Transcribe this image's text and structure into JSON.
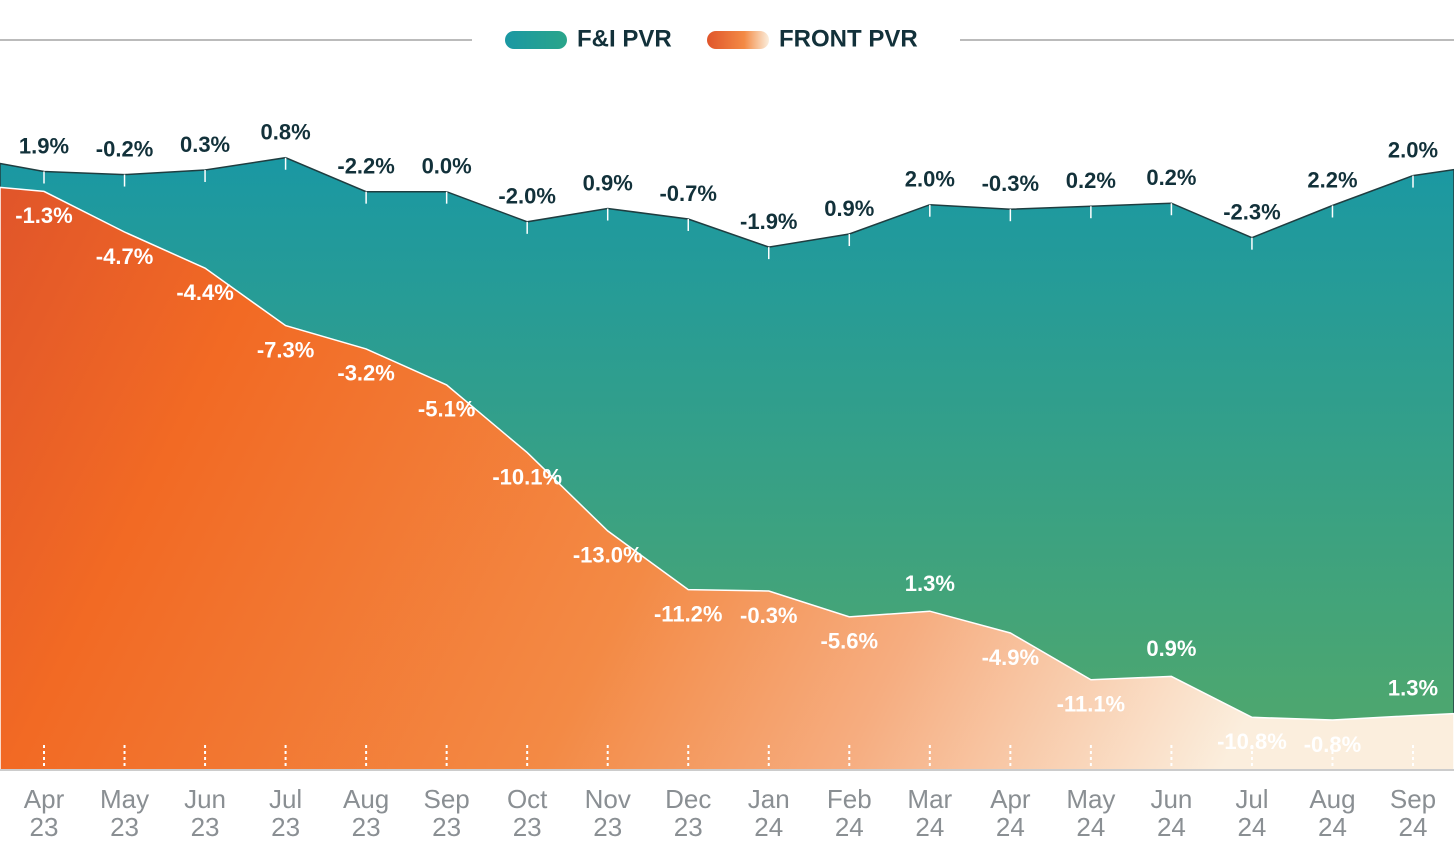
{
  "chart_data": {
    "type": "area",
    "categories": [
      [
        "Apr",
        "23"
      ],
      [
        "May",
        "23"
      ],
      [
        "Jun",
        "23"
      ],
      [
        "Jul",
        "23"
      ],
      [
        "Aug",
        "23"
      ],
      [
        "Sep",
        "23"
      ],
      [
        "Oct",
        "23"
      ],
      [
        "Nov",
        "23"
      ],
      [
        "Dec",
        "23"
      ],
      [
        "Jan",
        "24"
      ],
      [
        "Feb",
        "24"
      ],
      [
        "Mar",
        "24"
      ],
      [
        "Apr",
        "24"
      ],
      [
        "May",
        "24"
      ],
      [
        "Jun",
        "24"
      ],
      [
        "Jul",
        "24"
      ],
      [
        "Aug",
        "24"
      ],
      [
        "Sep",
        "24"
      ]
    ],
    "series": [
      {
        "name": "F&I PVR",
        "color": "#1a98a3",
        "values": [
          1.9,
          -0.2,
          0.3,
          0.8,
          -2.2,
          0.0,
          -2.0,
          0.9,
          -0.7,
          -1.9,
          0.9,
          2.0,
          -0.3,
          0.2,
          0.2,
          -2.3,
          2.2,
          2.0
        ],
        "value_labels": [
          "1.9%",
          "-0.2%",
          "0.3%",
          "0.8%",
          "-2.2%",
          "0.0%",
          "-2.0%",
          "0.9%",
          "-0.7%",
          "-1.9%",
          "0.9%",
          "2.0%",
          "-0.3%",
          "0.2%",
          "0.2%",
          "-2.3%",
          "2.2%",
          "2.0%"
        ]
      },
      {
        "name": "FRONT PVR",
        "color": "#f26a24",
        "values": [
          -1.3,
          -4.7,
          -4.4,
          -7.3,
          -3.2,
          -5.1,
          -10.1,
          -13.0,
          -11.2,
          -0.3,
          -5.6,
          1.3,
          -4.9,
          -11.1,
          0.9,
          -10.8,
          -0.8,
          1.3
        ],
        "value_labels": [
          "-1.3%",
          "-4.7%",
          "-4.4%",
          "-7.3%",
          "-3.2%",
          "-5.1%",
          "-10.1%",
          "-13.0%",
          "-11.2%",
          "-0.3%",
          "-5.6%",
          "1.3%",
          "-4.9%",
          "-11.1%",
          "0.9%",
          "-10.8%",
          "-0.8%",
          "1.3%"
        ]
      }
    ],
    "legend": "top"
  }
}
